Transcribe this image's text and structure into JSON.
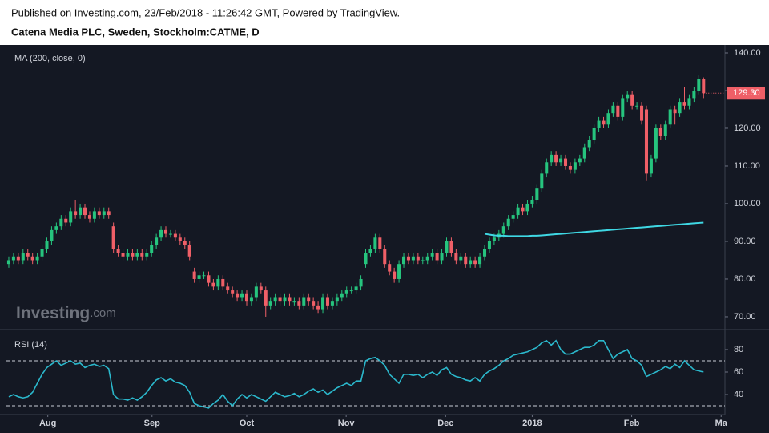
{
  "chart_data": {
    "type": "candlestick",
    "source": "Published on Investing.com, 23/Feb/2018 - 11:26:42 GMT, Powered by TradingView.",
    "title": "Catena Media PLC, Sweden, Stockholm:CATME, D",
    "watermark": {
      "brand": "Investing",
      "suffix": ".com"
    },
    "up_color": "#26c47e",
    "down_color": "#ef5f67",
    "ylim": [
      66.8,
      141.7
    ],
    "yticks": [
      {
        "value": 140,
        "label": "140.00"
      },
      {
        "value": 130,
        "label": "130.00"
      },
      {
        "value": 120,
        "label": "120.00"
      },
      {
        "value": 110,
        "label": "110.00"
      },
      {
        "value": 100,
        "label": "100.00"
      },
      {
        "value": 90,
        "label": "90.00"
      },
      {
        "value": 80,
        "label": "80.00"
      },
      {
        "value": 70,
        "label": "70.00"
      }
    ],
    "xlim": [
      -0.5,
      150.5
    ],
    "xticks": [
      {
        "value": 8.2,
        "label": "Aug"
      },
      {
        "value": 30.1,
        "label": "Sep"
      },
      {
        "value": 50,
        "label": "Oct"
      },
      {
        "value": 70.9,
        "label": "Nov"
      },
      {
        "value": 91.8,
        "label": "Dec"
      },
      {
        "value": 110,
        "label": "2018"
      },
      {
        "value": 130.9,
        "label": "Feb"
      },
      {
        "value": 149.7,
        "label": "Ma"
      }
    ],
    "last_price": {
      "value": 129.3,
      "label": "129.30",
      "color": "#ef5f67"
    },
    "open": [
      84,
      85,
      86,
      85,
      87,
      86,
      85,
      86,
      88,
      90,
      93,
      94,
      96,
      95,
      98,
      97,
      99,
      97,
      96,
      98,
      97,
      98,
      94,
      88,
      87,
      86,
      87,
      86,
      87,
      86,
      87,
      89,
      91,
      93,
      92,
      92,
      91,
      90,
      89,
      82,
      80,
      81,
      81,
      79,
      78,
      80,
      78,
      77,
      76,
      75,
      76,
      74,
      75,
      78,
      77,
      73,
      74,
      75,
      74,
      75,
      74,
      74,
      73,
      75,
      74,
      73,
      72,
      75,
      73,
      74,
      75,
      76,
      77,
      77,
      78,
      84,
      87,
      88,
      91,
      88,
      84,
      82,
      80,
      84,
      86,
      85,
      86,
      85,
      85,
      86,
      87,
      85,
      87,
      90,
      87,
      85,
      86,
      84,
      85,
      84,
      86,
      88,
      90,
      91,
      92,
      94,
      96,
      97,
      99,
      98,
      100,
      101,
      104,
      108,
      111,
      113,
      111,
      112,
      110,
      109,
      111,
      112,
      115,
      117,
      120,
      122,
      121,
      124,
      126,
      123,
      128,
      129,
      126,
      126,
      125,
      108,
      112,
      120,
      118,
      121,
      125,
      124,
      127,
      126,
      128,
      130,
      133
    ],
    "high": [
      86,
      87,
      87,
      88,
      88,
      87,
      87,
      89,
      91,
      94,
      95,
      97,
      97,
      99,
      101,
      100,
      100,
      98,
      99,
      99,
      99,
      99,
      95,
      89,
      88,
      88,
      88,
      88,
      88,
      88,
      90,
      92,
      94,
      94,
      93,
      93,
      92,
      91,
      90,
      83,
      82,
      82,
      82,
      80,
      81,
      81,
      79,
      78,
      77,
      77,
      77,
      76,
      79,
      79,
      78,
      75,
      76,
      76,
      76,
      76,
      75,
      75,
      76,
      76,
      75,
      74,
      76,
      76,
      75,
      76,
      77,
      78,
      78,
      79,
      81,
      88,
      89,
      92,
      92,
      89,
      85,
      83,
      85,
      87,
      87,
      87,
      87,
      86,
      87,
      88,
      88,
      88,
      91,
      91,
      88,
      87,
      87,
      86,
      86,
      87,
      89,
      91,
      92,
      93,
      95,
      97,
      98,
      100,
      100,
      101,
      102,
      105,
      109,
      112,
      114,
      114,
      113,
      113,
      111,
      112,
      113,
      116,
      118,
      121,
      123,
      123,
      125,
      127,
      127,
      129,
      130,
      130,
      127,
      127,
      126,
      113,
      121,
      121,
      122,
      126,
      126,
      128,
      131,
      129,
      131,
      134,
      133.5
    ],
    "low": [
      83,
      84,
      84,
      84,
      85,
      84,
      84,
      85,
      87,
      89,
      92,
      93,
      94,
      94,
      96,
      96,
      96,
      95,
      95,
      96,
      96,
      96,
      87,
      86,
      85,
      85,
      85,
      85,
      85,
      85,
      86,
      88,
      90,
      91,
      91,
      90,
      89,
      88,
      85,
      79,
      79,
      80,
      78,
      77,
      77,
      77,
      76,
      75,
      74,
      74,
      73,
      73,
      74,
      76,
      70,
      72,
      73,
      73,
      73,
      73,
      73,
      72,
      72,
      73,
      72,
      71,
      71,
      72,
      72,
      73,
      74,
      75,
      76,
      76,
      77,
      83,
      86,
      87,
      87,
      83,
      81,
      79,
      79,
      83,
      84,
      84,
      84,
      84,
      84,
      85,
      84,
      84,
      86,
      86,
      84,
      84,
      83,
      83,
      83,
      83,
      85,
      87,
      89,
      90,
      91,
      93,
      95,
      96,
      97,
      97,
      99,
      100,
      103,
      107,
      110,
      110,
      110,
      109,
      108,
      108,
      110,
      111,
      114,
      116,
      119,
      120,
      120,
      123,
      122,
      122,
      127,
      125,
      125,
      121,
      106,
      107,
      111,
      117,
      117,
      120,
      121,
      123,
      125,
      125,
      127,
      129,
      128
    ],
    "close": [
      85,
      86,
      85,
      87,
      86,
      85,
      86,
      88,
      90,
      93,
      94,
      96,
      95,
      98,
      97,
      99,
      97,
      96,
      98,
      97,
      98,
      97,
      88,
      87,
      86,
      87,
      86,
      87,
      86,
      87,
      89,
      91,
      93,
      92,
      92,
      91,
      90,
      89,
      86,
      80,
      81,
      81,
      79,
      78,
      80,
      78,
      77,
      76,
      75,
      76,
      74,
      75,
      78,
      77,
      73,
      74,
      75,
      74,
      75,
      74,
      74,
      73,
      75,
      74,
      73,
      72,
      75,
      73,
      74,
      75,
      76,
      77,
      77,
      78,
      80,
      87,
      88,
      91,
      88,
      84,
      82,
      80,
      84,
      86,
      85,
      86,
      85,
      85,
      86,
      87,
      85,
      87,
      90,
      87,
      85,
      86,
      84,
      85,
      84,
      86,
      88,
      90,
      91,
      92,
      94,
      96,
      97,
      99,
      98,
      100,
      101,
      104,
      108,
      111,
      113,
      111,
      112,
      110,
      109,
      111,
      112,
      115,
      117,
      120,
      122,
      121,
      124,
      126,
      123,
      128,
      129,
      126,
      126,
      122,
      108,
      112,
      120,
      118,
      121,
      125,
      124,
      127,
      126,
      128,
      130,
      133,
      129.3
    ],
    "ma": {
      "name": "MA (200, close, 0)",
      "color": "#3fd8e4",
      "values": [
        null,
        null,
        null,
        null,
        null,
        null,
        null,
        null,
        null,
        null,
        null,
        null,
        null,
        null,
        null,
        null,
        null,
        null,
        null,
        null,
        null,
        null,
        null,
        null,
        null,
        null,
        null,
        null,
        null,
        null,
        null,
        null,
        null,
        null,
        null,
        null,
        null,
        null,
        null,
        null,
        null,
        null,
        null,
        null,
        null,
        null,
        null,
        null,
        null,
        null,
        null,
        null,
        null,
        null,
        null,
        null,
        null,
        null,
        null,
        null,
        null,
        null,
        null,
        null,
        null,
        null,
        null,
        null,
        null,
        null,
        null,
        null,
        null,
        null,
        null,
        null,
        null,
        null,
        null,
        null,
        null,
        null,
        null,
        null,
        null,
        null,
        null,
        null,
        null,
        null,
        null,
        null,
        null,
        null,
        null,
        null,
        null,
        null,
        null,
        null,
        92,
        91.8,
        91.6,
        91.5,
        91.5,
        91.4,
        91.4,
        91.4,
        91.4,
        91.4,
        91.5,
        91.5,
        91.6,
        91.7,
        91.8,
        91.9,
        92,
        92.1,
        92.2,
        92.3,
        92.4,
        92.5,
        92.6,
        92.7,
        92.8,
        92.9,
        93,
        93.1,
        93.2,
        93.3,
        93.4,
        93.5,
        93.6,
        93.7,
        93.8,
        93.9,
        94,
        94.1,
        94.2,
        94.3,
        94.4,
        94.5,
        94.6,
        94.7,
        94.8,
        94.9,
        95
      ]
    },
    "rsi": {
      "name": "RSI (14)",
      "color": "#2bb8cc",
      "ylim": [
        23.6,
        96.4
      ],
      "yticks": [
        80,
        60,
        40
      ],
      "levels": [
        70,
        30
      ],
      "values": [
        38,
        40,
        38,
        37,
        38,
        42,
        50,
        58,
        64,
        67,
        70,
        66,
        68,
        70,
        67,
        68,
        64,
        66,
        67,
        65,
        66,
        63,
        40,
        36,
        36,
        35,
        37,
        35,
        38,
        42,
        48,
        53,
        55,
        52,
        54,
        51,
        50,
        48,
        42,
        32,
        30,
        29,
        28,
        32,
        35,
        40,
        34,
        30,
        36,
        40,
        37,
        40,
        38,
        36,
        34,
        38,
        42,
        40,
        38,
        39,
        41,
        38,
        40,
        43,
        45,
        42,
        44,
        40,
        43,
        46,
        48,
        50,
        48,
        52,
        52,
        70,
        72,
        73,
        70,
        66,
        58,
        54,
        50,
        58,
        58,
        57,
        58,
        55,
        58,
        60,
        57,
        62,
        64,
        58,
        56,
        55,
        53,
        52,
        55,
        52,
        58,
        61,
        63,
        66,
        70,
        72,
        75,
        76,
        77,
        78,
        80,
        82,
        86,
        88,
        84,
        88,
        80,
        76,
        76,
        78,
        80,
        82,
        82,
        84,
        88,
        88,
        80,
        72,
        76,
        78,
        80,
        72,
        70,
        66,
        56,
        58,
        60,
        62,
        65,
        63,
        67,
        64,
        70,
        66,
        62,
        61,
        60
      ]
    }
  }
}
